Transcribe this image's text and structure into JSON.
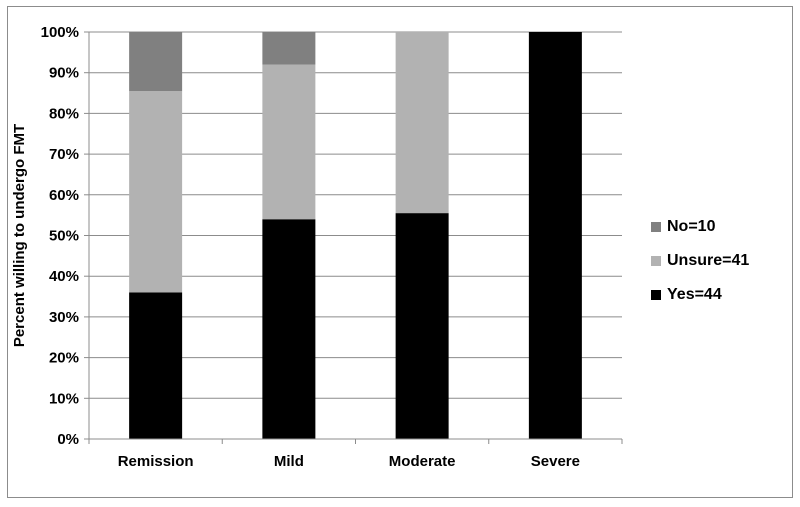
{
  "chart_data": {
    "type": "bar",
    "stacked": true,
    "categories": [
      "Remission",
      "Mild",
      "Moderate",
      "Severe"
    ],
    "series": [
      {
        "name": "Yes=44",
        "color": "#000000",
        "values": [
          36,
          54,
          55.5,
          100
        ]
      },
      {
        "name": "Unsure=41",
        "color": "#b2b2b2",
        "values": [
          49.5,
          38,
          44.5,
          0
        ]
      },
      {
        "name": "No=10",
        "color": "#808080",
        "values": [
          14.5,
          8,
          0,
          0
        ]
      }
    ],
    "legend_order": [
      "No=10",
      "Unsure=41",
      "Yes=44"
    ],
    "ylabel": "Percent willing to undergo FMT",
    "xlabel": "",
    "ylim": [
      0,
      100
    ],
    "yticks": [
      "0%",
      "10%",
      "20%",
      "30%",
      "40%",
      "50%",
      "60%",
      "70%",
      "80%",
      "90%",
      "100%"
    ],
    "grid": true,
    "legend_position": "right"
  }
}
